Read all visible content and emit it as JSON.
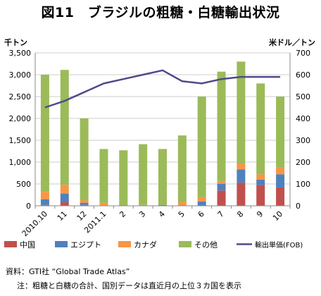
{
  "chart_data": {
    "type": "bar",
    "title": "図11　ブラジルの粗糖・白糖輸出状況",
    "ylabel": "千トン",
    "y2label": "米ドル／トン",
    "ylim": [
      0,
      3500
    ],
    "y2lim": [
      0,
      700
    ],
    "yticks": [
      "0",
      "500",
      "1,000",
      "1,500",
      "2,000",
      "2,500",
      "3,000",
      "3,500"
    ],
    "y2ticks": [
      "0",
      "100",
      "200",
      "300",
      "400",
      "500",
      "600",
      "700"
    ],
    "categories": [
      "2010.10",
      "11",
      "12",
      "2011.1",
      "2",
      "3",
      "4",
      "5",
      "6",
      "7",
      "8",
      "9",
      "10"
    ],
    "stacked": true,
    "grid": true,
    "legend_position": "bottom",
    "series": [
      {
        "name": "中国",
        "color": "#c0504d",
        "values": [
          20,
          80,
          20,
          0,
          0,
          0,
          0,
          0,
          0,
          350,
          530,
          480,
          420
        ]
      },
      {
        "name": "エジプト",
        "color": "#4f81bd",
        "values": [
          130,
          200,
          50,
          10,
          0,
          0,
          20,
          0,
          100,
          150,
          300,
          120,
          300
        ]
      },
      {
        "name": "カナダ",
        "color": "#f79646",
        "values": [
          170,
          200,
          60,
          60,
          0,
          20,
          0,
          80,
          100,
          70,
          130,
          120,
          160
        ]
      },
      {
        "name": "その他",
        "color": "#9bbb59",
        "values": [
          2680,
          2630,
          1870,
          1230,
          1270,
          1390,
          1280,
          1530,
          2300,
          2500,
          2340,
          2080,
          1620
        ]
      }
    ],
    "line_series": {
      "name": "輸出単価(FOB)",
      "color": "#4f4a8a",
      "axis": "right",
      "values": [
        450,
        480,
        520,
        560,
        580,
        600,
        620,
        570,
        560,
        580,
        590,
        590,
        590
      ]
    }
  },
  "notes": {
    "source": "資料：GTI社 “Global Trade Atlas”",
    "note": "注：粗糖と白糖の合計、国別データは直近月の上位３カ国を表示"
  }
}
